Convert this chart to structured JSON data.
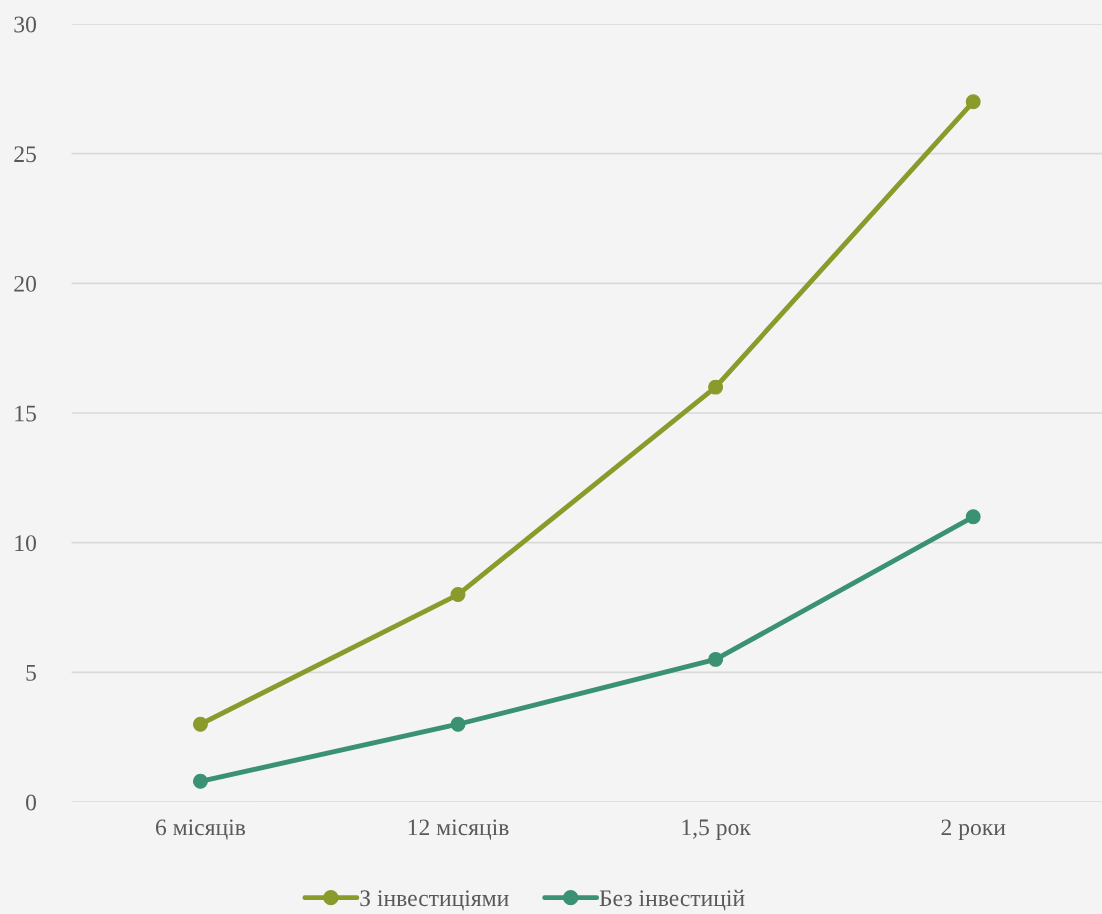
{
  "chart_data": {
    "type": "line",
    "categories": [
      "6 місяців",
      "12 місяців",
      "1,5 рок",
      "2 роки"
    ],
    "series": [
      {
        "name": "З інвестиціями",
        "color": "#8a9a2b",
        "values": [
          3,
          8,
          16,
          27
        ]
      },
      {
        "name": "Без інвестицій",
        "color": "#3a9272",
        "values": [
          0.8,
          3,
          5.5,
          11
        ]
      }
    ],
    "ylim": [
      0,
      30
    ],
    "yticks": [
      0,
      5,
      10,
      15,
      20,
      25,
      30
    ],
    "grid": "y",
    "legend": "bottom",
    "marker": "circle",
    "line_style": "solid"
  }
}
